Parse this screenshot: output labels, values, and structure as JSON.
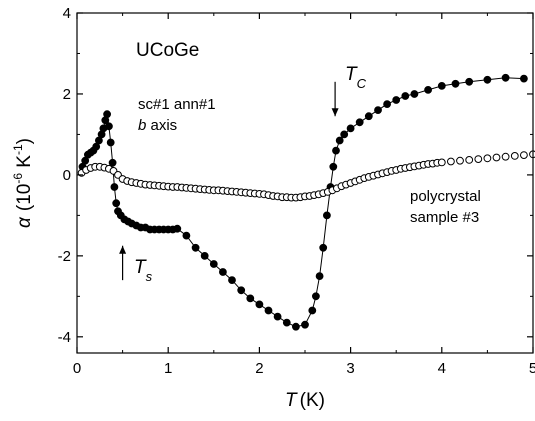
{
  "chart_data": {
    "type": "scatter",
    "xlabel": {
      "symbol": "T",
      "unit": "(K)"
    },
    "ylabel": {
      "symbol": "α",
      "unit_prefix": "(10",
      "unit_exp1": "-6",
      "unit_mid": " K",
      "unit_exp2": "-1",
      "unit_suffix": ")"
    },
    "xlim": [
      0,
      5
    ],
    "ylim": [
      -4.4,
      4
    ],
    "x_ticks": [
      0,
      1,
      2,
      3,
      4,
      5
    ],
    "y_ticks": [
      -4,
      -2,
      0,
      2,
      4
    ],
    "x_tick_labels": [
      "0",
      "1",
      "2",
      "3",
      "4",
      "5"
    ],
    "y_tick_labels": [
      "-4",
      "-2",
      "0",
      "2",
      "4"
    ],
    "grid": false,
    "annotations": {
      "material": "UCoGe",
      "sample_line1": "sc#1 ann#1",
      "sample_line2_italic": "b",
      "sample_line2_rest": " axis",
      "poly_line1": "polycrystal",
      "poly_line2": "sample #3",
      "tc_symbol": "T",
      "tc_sub": "C",
      "ts_symbol": "T",
      "ts_sub": "s"
    },
    "arrows": [
      {
        "name": "tc-arrow",
        "x": 2.83,
        "y_from": 2.3,
        "y_to": 1.45
      },
      {
        "name": "ts-arrow",
        "x": 0.5,
        "y_from": -2.6,
        "y_to": -1.75
      }
    ],
    "series": [
      {
        "marker": "filled-circle",
        "connect": true,
        "x": [
          0.06,
          0.09,
          0.12,
          0.15,
          0.18,
          0.21,
          0.24,
          0.27,
          0.29,
          0.31,
          0.33,
          0.35,
          0.37,
          0.39,
          0.41,
          0.43,
          0.45,
          0.48,
          0.52,
          0.56,
          0.6,
          0.65,
          0.7,
          0.75,
          0.8,
          0.85,
          0.9,
          0.95,
          1.0,
          1.05,
          1.1,
          1.2,
          1.3,
          1.4,
          1.5,
          1.6,
          1.7,
          1.8,
          1.9,
          2.0,
          2.1,
          2.2,
          2.3,
          2.4,
          2.5,
          2.58,
          2.62,
          2.66,
          2.7,
          2.74,
          2.78,
          2.81,
          2.84,
          2.88,
          2.93,
          3.0,
          3.1,
          3.2,
          3.3,
          3.4,
          3.5,
          3.6,
          3.7,
          3.85,
          4.0,
          4.15,
          4.3,
          4.5,
          4.7,
          4.9
        ],
        "y": [
          0.2,
          0.35,
          0.5,
          0.55,
          0.6,
          0.7,
          0.85,
          1.0,
          1.15,
          1.35,
          1.5,
          1.2,
          0.8,
          0.3,
          -0.3,
          -0.7,
          -0.9,
          -1.0,
          -1.1,
          -1.15,
          -1.2,
          -1.25,
          -1.3,
          -1.3,
          -1.35,
          -1.35,
          -1.35,
          -1.35,
          -1.35,
          -1.35,
          -1.33,
          -1.5,
          -1.8,
          -2.0,
          -2.2,
          -2.4,
          -2.6,
          -2.85,
          -3.05,
          -3.2,
          -3.35,
          -3.5,
          -3.65,
          -3.75,
          -3.7,
          -3.35,
          -3.0,
          -2.5,
          -1.8,
          -1.0,
          -0.3,
          0.2,
          0.6,
          0.85,
          1.0,
          1.15,
          1.3,
          1.45,
          1.6,
          1.75,
          1.85,
          1.95,
          2.0,
          2.1,
          2.2,
          2.25,
          2.3,
          2.35,
          2.4,
          2.38
        ]
      },
      {
        "marker": "open-circle",
        "connect": false,
        "x": [
          0.05,
          0.1,
          0.15,
          0.2,
          0.25,
          0.3,
          0.35,
          0.4,
          0.45,
          0.5,
          0.55,
          0.6,
          0.65,
          0.7,
          0.75,
          0.8,
          0.85,
          0.9,
          0.95,
          1.0,
          1.05,
          1.1,
          1.15,
          1.2,
          1.25,
          1.3,
          1.35,
          1.4,
          1.45,
          1.5,
          1.55,
          1.6,
          1.65,
          1.7,
          1.75,
          1.8,
          1.85,
          1.9,
          1.95,
          2.0,
          2.05,
          2.1,
          2.15,
          2.2,
          2.25,
          2.3,
          2.35,
          2.4,
          2.45,
          2.5,
          2.55,
          2.6,
          2.65,
          2.7,
          2.75,
          2.8,
          2.85,
          2.9,
          2.95,
          3.0,
          3.05,
          3.1,
          3.15,
          3.2,
          3.25,
          3.3,
          3.35,
          3.4,
          3.45,
          3.5,
          3.55,
          3.6,
          3.65,
          3.7,
          3.75,
          3.8,
          3.85,
          3.9,
          3.95,
          4.0,
          4.1,
          4.2,
          4.3,
          4.4,
          4.5,
          4.6,
          4.7,
          4.8,
          4.9,
          5.0
        ],
        "y": [
          0.05,
          0.12,
          0.17,
          0.2,
          0.2,
          0.18,
          0.15,
          0.1,
          0.0,
          -0.1,
          -0.15,
          -0.18,
          -0.2,
          -0.22,
          -0.24,
          -0.25,
          -0.26,
          -0.27,
          -0.28,
          -0.29,
          -0.3,
          -0.3,
          -0.31,
          -0.32,
          -0.33,
          -0.34,
          -0.35,
          -0.36,
          -0.37,
          -0.38,
          -0.38,
          -0.39,
          -0.4,
          -0.41,
          -0.42,
          -0.43,
          -0.44,
          -0.45,
          -0.46,
          -0.47,
          -0.48,
          -0.5,
          -0.52,
          -0.53,
          -0.55,
          -0.55,
          -0.56,
          -0.56,
          -0.55,
          -0.53,
          -0.52,
          -0.5,
          -0.48,
          -0.45,
          -0.42,
          -0.38,
          -0.33,
          -0.28,
          -0.24,
          -0.2,
          -0.16,
          -0.12,
          -0.08,
          -0.05,
          -0.02,
          0.01,
          0.04,
          0.07,
          0.1,
          0.12,
          0.15,
          0.17,
          0.19,
          0.21,
          0.23,
          0.25,
          0.27,
          0.28,
          0.3,
          0.31,
          0.33,
          0.35,
          0.37,
          0.39,
          0.41,
          0.43,
          0.45,
          0.47,
          0.49,
          0.51
        ]
      }
    ]
  }
}
